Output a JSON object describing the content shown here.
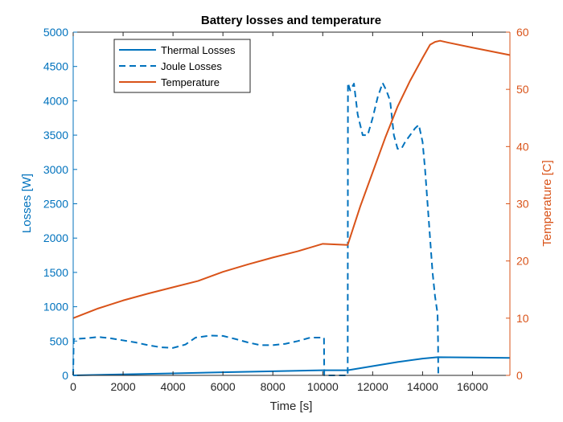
{
  "chart_data": {
    "type": "line",
    "title": "Battery losses and temperature",
    "xlabel": "Time [s]",
    "ylabel_left": "Losses [W]",
    "ylabel_right": "Temperature [C]",
    "xlim": [
      0,
      17500
    ],
    "ylim_left": [
      0,
      5000
    ],
    "ylim_right": [
      0,
      60
    ],
    "xticks": [
      0,
      2000,
      4000,
      6000,
      8000,
      10000,
      12000,
      14000,
      16000
    ],
    "yticks_left": [
      0,
      500,
      1000,
      1500,
      2000,
      2500,
      3000,
      3500,
      4000,
      4500,
      5000
    ],
    "yticks_right": [
      0,
      10,
      20,
      30,
      40,
      50,
      60
    ],
    "grid": false,
    "legend_position": "top-left",
    "colors": {
      "left_axis": "#0072BD",
      "right_axis": "#D95319",
      "frame": "#262626"
    },
    "series": [
      {
        "name": "Thermal Losses",
        "axis": "left",
        "style": "solid",
        "color": "#0072BD",
        "x": [
          0,
          2000,
          4000,
          6000,
          8000,
          10000,
          11000,
          12000,
          13000,
          14000,
          14600,
          16000,
          17500
        ],
        "y": [
          0,
          15,
          30,
          45,
          60,
          75,
          75,
          135,
          195,
          245,
          265,
          260,
          255
        ]
      },
      {
        "name": "Joule Losses",
        "axis": "left",
        "style": "dashed",
        "color": "#0072BD",
        "x": [
          0,
          20,
          500,
          1000,
          1500,
          2000,
          2500,
          3000,
          3500,
          4000,
          4500,
          4900,
          5500,
          6000,
          6500,
          7000,
          7500,
          8000,
          8500,
          9000,
          9500,
          10000,
          10050,
          10060,
          11000,
          11010,
          11100,
          11250,
          11400,
          11600,
          11800,
          12000,
          12200,
          12400,
          12550,
          12700,
          12850,
          13000,
          13150,
          13300,
          13500,
          13700,
          13850,
          14000,
          14100,
          14200,
          14300,
          14400,
          14500,
          14600,
          14620,
          14630
        ],
        "y": [
          0,
          530,
          540,
          560,
          540,
          510,
          480,
          440,
          410,
          400,
          450,
          550,
          580,
          575,
          530,
          480,
          440,
          440,
          460,
          500,
          550,
          550,
          550,
          0,
          0,
          4260,
          4150,
          4250,
          3800,
          3500,
          3500,
          3750,
          4050,
          4260,
          4150,
          4000,
          3500,
          3300,
          3300,
          3400,
          3500,
          3600,
          3650,
          3400,
          3000,
          2500,
          2000,
          1500,
          1150,
          900,
          500,
          0
        ]
      },
      {
        "name": "Temperature",
        "axis": "right",
        "style": "solid",
        "color": "#D95319",
        "x": [
          0,
          1000,
          2000,
          3000,
          4000,
          5000,
          6000,
          7000,
          8000,
          9000,
          10000,
          11000,
          11500,
          12000,
          12500,
          13000,
          13500,
          14000,
          14300,
          14500,
          14700,
          15000,
          16000,
          17500
        ],
        "y": [
          10,
          11.7,
          13.1,
          14.3,
          15.4,
          16.5,
          18.1,
          19.4,
          20.6,
          21.7,
          23.0,
          22.8,
          29.5,
          35.5,
          41.5,
          47.0,
          51.5,
          55.5,
          57.8,
          58.3,
          58.5,
          58.2,
          57.3,
          56.0
        ]
      }
    ]
  }
}
